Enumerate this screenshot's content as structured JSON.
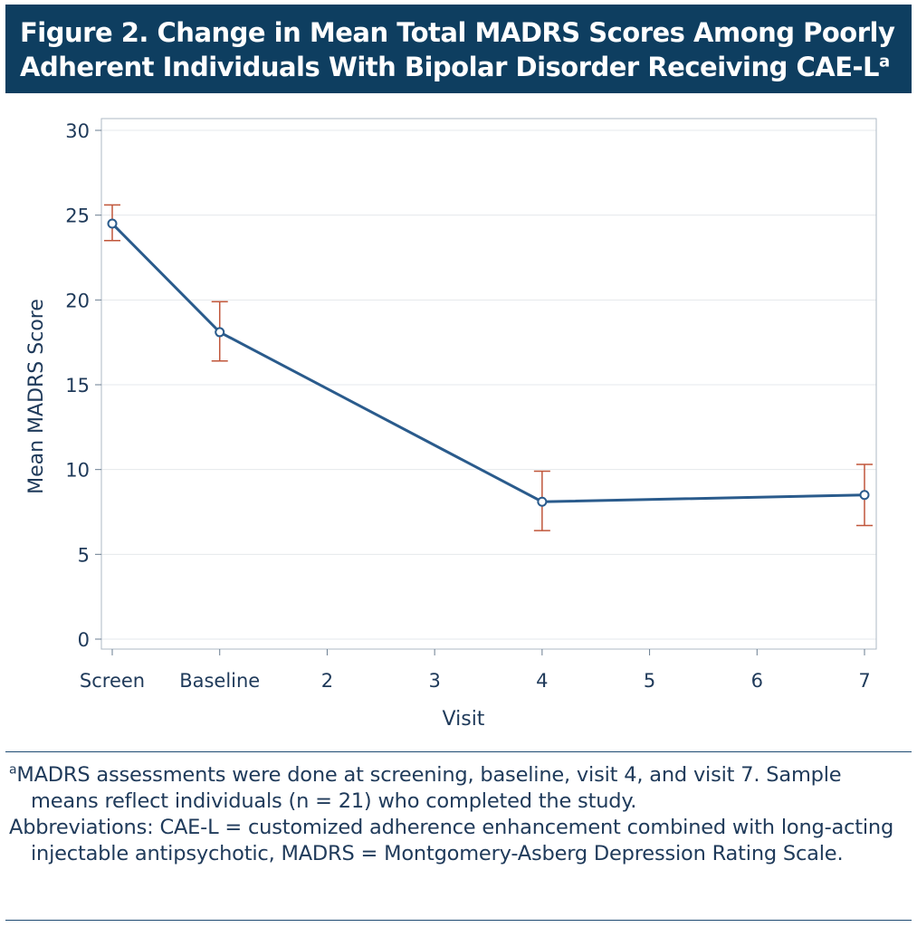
{
  "figure": {
    "title_line1": "Figure 2. Change in Mean Total MADRS Scores Among Poorly",
    "title_line2": "Adherent Individuals With Bipolar Disorder Receiving CAE-L",
    "title_superscript": "a",
    "colors": {
      "title_background": "#0e3e60",
      "line": "#2a5b8c",
      "error_bar": "#c0563a",
      "text": "#1f3a5a"
    }
  },
  "chart_data": {
    "type": "line",
    "title": "",
    "xlabel": "Visit",
    "ylabel": "Mean MADRS Score",
    "categories": [
      "Screen",
      "Baseline",
      "2",
      "3",
      "4",
      "5",
      "6",
      "7"
    ],
    "ylim": [
      0,
      30
    ],
    "yticks": [
      0,
      5,
      10,
      15,
      20,
      25,
      30
    ],
    "grid": true,
    "series": [
      {
        "points": [
          {
            "x": "Screen",
            "y": 24.5,
            "err_low": 23.5,
            "err_high": 25.6
          },
          {
            "x": "Baseline",
            "y": 18.1,
            "err_low": 16.4,
            "err_high": 19.9
          },
          {
            "x": "4",
            "y": 8.1,
            "err_low": 6.4,
            "err_high": 9.9
          },
          {
            "x": "7",
            "y": 8.5,
            "err_low": 6.7,
            "err_high": 10.3
          }
        ]
      }
    ]
  },
  "footnotes": {
    "a_marker": "a",
    "a_text": "MADRS assessments were done at screening, baseline, visit 4, and visit 7. Sample means reflect individuals (n = 21) who completed the study.",
    "abbreviations": "Abbreviations: CAE-L = customized adherence enhancement combined with long-acting injectable antipsychotic, MADRS = Montgomery-Asberg Depression Rating Scale."
  }
}
